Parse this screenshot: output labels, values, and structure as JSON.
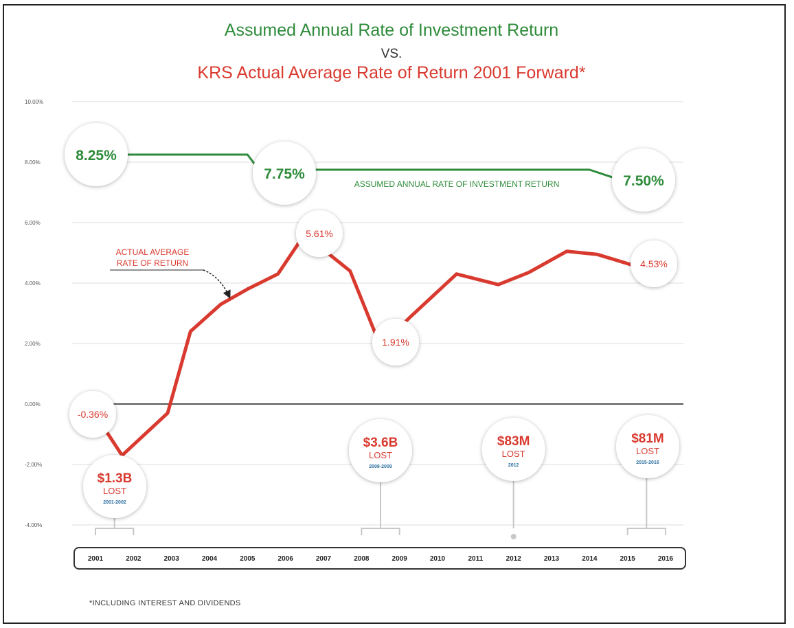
{
  "chart_data": {
    "type": "line",
    "title": "Assumed Annual Rate of Investment Return",
    "title_vs": "VS.",
    "subtitle": "KRS Actual Average Rate of Return 2001 Forward*",
    "footnote": "*INCLUDING INTEREST AND DIVIDENDS",
    "y_ticks": [
      "10.00%",
      "8.00%",
      "6.00%",
      "4.00%",
      "2.00%",
      "0.00%",
      "-2.00%",
      "-4.00%"
    ],
    "ylim": [
      -4,
      10
    ],
    "x_ticks": [
      "2001",
      "2002",
      "2003",
      "2004",
      "2005",
      "2006",
      "2007",
      "2008",
      "2009",
      "2010",
      "2011",
      "2012",
      "2013",
      "2014",
      "2015",
      "2016"
    ],
    "grid": true,
    "series": [
      {
        "name": "ASSUMED ANNUAL RATE OF INVESTMENT RETURN",
        "color": "#2e8b3a",
        "x": [
          2001,
          2005,
          2005.3,
          2014,
          2014.6
        ],
        "y": [
          8.25,
          8.25,
          7.75,
          7.75,
          7.5
        ]
      },
      {
        "name": "ACTUAL AVERAGE RATE OF RETURN",
        "color": "#d93a2f",
        "x": [
          2001,
          2001.7,
          2002.9,
          2003.5,
          2004.3,
          2005,
          2005.8,
          2006.5,
          2007.7,
          2008.5,
          2009.3,
          2010.5,
          2011.6,
          2012.4,
          2013.4,
          2014.2,
          2015.3
        ],
        "y": [
          -0.36,
          -1.7,
          -0.3,
          2.4,
          3.3,
          3.8,
          4.3,
          5.61,
          4.4,
          1.91,
          2.9,
          4.3,
          3.95,
          4.35,
          5.05,
          4.95,
          4.53
        ]
      }
    ],
    "annotations": {
      "assumed": [
        {
          "year": 2001.3,
          "value": 8.25,
          "label": "8.25%"
        },
        {
          "year": 2005.8,
          "value": 7.75,
          "label": "7.75%"
        },
        {
          "year": 2015.7,
          "value": 7.5,
          "label": "7.50%"
        }
      ],
      "actual": [
        {
          "year": 2001,
          "value": -0.36,
          "label": "-0.36%"
        },
        {
          "year": 2006.5,
          "value": 5.61,
          "label": "5.61%"
        },
        {
          "year": 2008.7,
          "value": 1.91,
          "label": "1.91%"
        },
        {
          "year": 2015.5,
          "value": 4.53,
          "label": "4.53%"
        }
      ],
      "assumed_line_label": "ASSUMED ANNUAL RATE OF INVESTMENT RETURN",
      "actual_line_label": [
        "ACTUAL AVERAGE",
        "RATE OF RETURN"
      ],
      "losses": [
        {
          "amount": "$1.3B",
          "word": "LOST",
          "period": "2001-2002",
          "years": [
            2001,
            2002
          ]
        },
        {
          "amount": "$3.6B",
          "word": "LOST",
          "period": "2008-2009",
          "years": [
            2008,
            2009
          ]
        },
        {
          "amount": "$83M",
          "word": "LOST",
          "period": "2012",
          "years": [
            2012
          ]
        },
        {
          "amount": "$81M",
          "word": "LOST",
          "period": "2015-2016",
          "years": [
            2015,
            2016
          ]
        }
      ]
    },
    "colors": {
      "assumed": "#2e8b3a",
      "actual": "#d93a2f",
      "period": "#2d6f9e",
      "grid": "#dddddd",
      "zero_line": "#555555"
    }
  }
}
